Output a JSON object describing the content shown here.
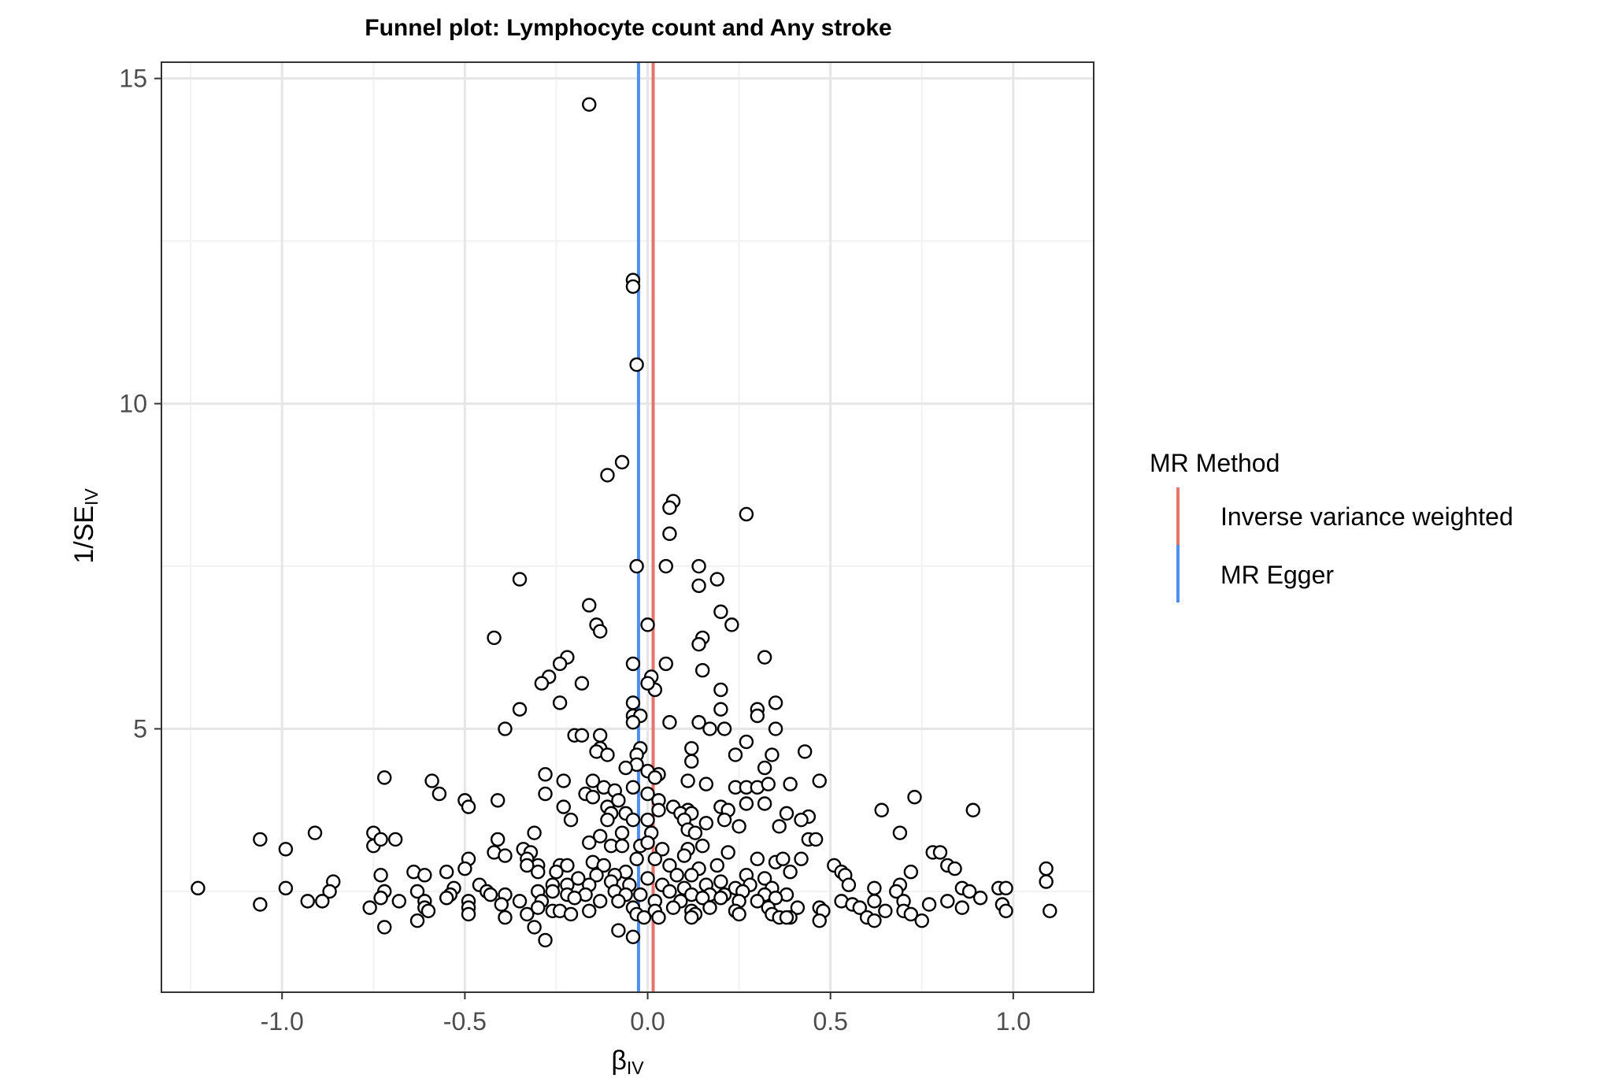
{
  "chart_data": {
    "type": "scatter",
    "title": "Funnel plot: Lymphocyte count and Any stroke",
    "xlabel": {
      "main": "β",
      "sub": "IV"
    },
    "ylabel": {
      "main": "1/SE",
      "sub": "IV"
    },
    "xlim": [
      -1.33,
      1.22
    ],
    "ylim": [
      0.95,
      15.25
    ],
    "xticks": [
      -1.0,
      -0.5,
      0.0,
      0.5,
      1.0
    ],
    "xtick_labels": [
      "-1.0",
      "-0.5",
      "0.0",
      "0.5",
      "1.0"
    ],
    "yticks": [
      5,
      10,
      15
    ],
    "ytick_labels": [
      "5",
      "10",
      "15"
    ],
    "grid": true,
    "legend": {
      "title": "MR Method",
      "position": "right",
      "entries": [
        {
          "label": "Inverse variance weighted",
          "color": "#e8736b"
        },
        {
          "label": "MR Egger",
          "color": "#4e8ff0"
        }
      ]
    },
    "vlines": [
      {
        "method": "Inverse variance weighted",
        "x": 0.015,
        "color": "#e8736b"
      },
      {
        "method": "MR Egger",
        "x": -0.025,
        "color": "#4e8ff0"
      }
    ],
    "points": [
      [
        -0.16,
        14.6
      ],
      [
        -0.04,
        11.9
      ],
      [
        -0.04,
        11.8
      ],
      [
        -0.03,
        10.6
      ],
      [
        -0.07,
        9.1
      ],
      [
        -0.11,
        8.9
      ],
      [
        0.07,
        8.5
      ],
      [
        0.06,
        8.4
      ],
      [
        0.27,
        8.3
      ],
      [
        0.06,
        8.0
      ],
      [
        -0.35,
        7.3
      ],
      [
        -0.03,
        7.5
      ],
      [
        0.05,
        7.5
      ],
      [
        0.14,
        7.5
      ],
      [
        0.19,
        7.3
      ],
      [
        0.14,
        7.2
      ],
      [
        -0.16,
        6.9
      ],
      [
        0.2,
        6.8
      ],
      [
        -0.14,
        6.6
      ],
      [
        -0.13,
        6.5
      ],
      [
        0.0,
        6.6
      ],
      [
        0.23,
        6.6
      ],
      [
        -0.42,
        6.4
      ],
      [
        0.15,
        6.4
      ],
      [
        0.14,
        6.3
      ],
      [
        -0.22,
        6.1
      ],
      [
        -0.24,
        6.0
      ],
      [
        0.32,
        6.1
      ],
      [
        -0.04,
        6.0
      ],
      [
        0.05,
        6.0
      ],
      [
        -0.27,
        5.8
      ],
      [
        0.01,
        5.8
      ],
      [
        0.15,
        5.9
      ],
      [
        -0.29,
        5.7
      ],
      [
        -0.18,
        5.7
      ],
      [
        0.02,
        5.6
      ],
      [
        0.0,
        5.7
      ],
      [
        0.2,
        5.6
      ],
      [
        -0.24,
        5.4
      ],
      [
        -0.35,
        5.3
      ],
      [
        -0.04,
        5.4
      ],
      [
        0.3,
        5.3
      ],
      [
        0.35,
        5.4
      ],
      [
        -0.04,
        5.2
      ],
      [
        -0.02,
        5.2
      ],
      [
        0.2,
        5.3
      ],
      [
        0.3,
        5.2
      ],
      [
        0.06,
        5.1
      ],
      [
        0.14,
        5.1
      ],
      [
        -0.04,
        5.1
      ],
      [
        0.17,
        5.0
      ],
      [
        0.21,
        5.0
      ],
      [
        0.35,
        5.0
      ],
      [
        -0.39,
        5.0
      ],
      [
        -0.2,
        4.9
      ],
      [
        -0.18,
        4.9
      ],
      [
        -0.13,
        4.9
      ],
      [
        0.27,
        4.8
      ],
      [
        -0.13,
        4.7
      ],
      [
        0.12,
        4.7
      ],
      [
        -0.14,
        4.65
      ],
      [
        -0.11,
        4.6
      ],
      [
        -0.02,
        4.7
      ],
      [
        0.34,
        4.6
      ],
      [
        0.43,
        4.65
      ],
      [
        -0.03,
        4.6
      ],
      [
        0.24,
        4.6
      ],
      [
        0.12,
        4.5
      ],
      [
        0.32,
        4.4
      ],
      [
        -0.03,
        4.45
      ],
      [
        0.0,
        4.35
      ],
      [
        -0.28,
        4.3
      ],
      [
        -0.06,
        4.4
      ],
      [
        -0.23,
        4.2
      ],
      [
        0.03,
        4.3
      ],
      [
        -0.15,
        4.2
      ],
      [
        0.02,
        4.25
      ],
      [
        -0.12,
        4.1
      ],
      [
        -0.09,
        4.05
      ],
      [
        -0.72,
        4.25
      ],
      [
        -0.59,
        4.2
      ],
      [
        -0.28,
        4.0
      ],
      [
        -0.17,
        4.0
      ],
      [
        -0.04,
        4.1
      ],
      [
        0.0,
        4.0
      ],
      [
        0.11,
        4.2
      ],
      [
        0.16,
        4.15
      ],
      [
        0.24,
        4.1
      ],
      [
        0.27,
        4.1
      ],
      [
        0.3,
        4.1
      ],
      [
        0.33,
        4.15
      ],
      [
        0.39,
        4.15
      ],
      [
        0.47,
        4.2
      ],
      [
        -0.57,
        4.0
      ],
      [
        -0.5,
        3.9
      ],
      [
        -0.49,
        3.8
      ],
      [
        -0.41,
        3.9
      ],
      [
        -0.23,
        3.8
      ],
      [
        -0.15,
        3.95
      ],
      [
        -0.11,
        3.8
      ],
      [
        -0.08,
        3.9
      ],
      [
        0.03,
        3.9
      ],
      [
        0.07,
        3.8
      ],
      [
        0.11,
        3.75
      ],
      [
        0.2,
        3.8
      ],
      [
        0.22,
        3.75
      ],
      [
        0.27,
        3.85
      ],
      [
        0.32,
        3.85
      ],
      [
        -0.1,
        3.7
      ],
      [
        -0.06,
        3.7
      ],
      [
        0.03,
        3.75
      ],
      [
        0.09,
        3.7
      ],
      [
        0.12,
        3.7
      ],
      [
        0.38,
        3.7
      ],
      [
        0.44,
        3.65
      ],
      [
        0.64,
        3.75
      ],
      [
        0.73,
        3.95
      ],
      [
        0.89,
        3.75
      ],
      [
        -0.21,
        3.6
      ],
      [
        -0.11,
        3.6
      ],
      [
        -0.04,
        3.6
      ],
      [
        0.0,
        3.6
      ],
      [
        0.1,
        3.6
      ],
      [
        0.16,
        3.55
      ],
      [
        0.21,
        3.6
      ],
      [
        0.25,
        3.5
      ],
      [
        0.36,
        3.5
      ],
      [
        0.42,
        3.6
      ],
      [
        -0.75,
        3.4
      ],
      [
        -0.91,
        3.4
      ],
      [
        -0.31,
        3.4
      ],
      [
        -0.13,
        3.35
      ],
      [
        -0.07,
        3.4
      ],
      [
        0.01,
        3.4
      ],
      [
        0.11,
        3.45
      ],
      [
        0.13,
        3.4
      ],
      [
        -1.06,
        3.3
      ],
      [
        -0.75,
        3.2
      ],
      [
        -0.73,
        3.3
      ],
      [
        -0.69,
        3.3
      ],
      [
        -0.41,
        3.3
      ],
      [
        -0.99,
        3.15
      ],
      [
        -0.42,
        3.1
      ],
      [
        -0.34,
        3.15
      ],
      [
        -0.32,
        3.1
      ],
      [
        -0.39,
        3.05
      ],
      [
        -0.33,
        3.0
      ],
      [
        -0.16,
        3.25
      ],
      [
        -0.1,
        3.2
      ],
      [
        -0.07,
        3.2
      ],
      [
        -0.02,
        3.2
      ],
      [
        0.0,
        3.25
      ],
      [
        0.04,
        3.15
      ],
      [
        0.11,
        3.15
      ],
      [
        0.15,
        3.2
      ],
      [
        0.22,
        3.1
      ],
      [
        0.44,
        3.3
      ],
      [
        0.46,
        3.3
      ],
      [
        0.69,
        3.4
      ],
      [
        -0.49,
        3.0
      ],
      [
        -0.3,
        2.9
      ],
      [
        -0.24,
        2.9
      ],
      [
        -0.22,
        2.9
      ],
      [
        -0.15,
        2.95
      ],
      [
        -0.12,
        2.9
      ],
      [
        -0.06,
        2.8
      ],
      [
        -0.03,
        3.0
      ],
      [
        0.02,
        3.0
      ],
      [
        0.06,
        2.9
      ],
      [
        0.1,
        3.05
      ],
      [
        0.14,
        2.85
      ],
      [
        0.19,
        2.9
      ],
      [
        0.3,
        3.0
      ],
      [
        0.35,
        2.95
      ],
      [
        0.37,
        3.0
      ],
      [
        0.42,
        3.0
      ],
      [
        0.51,
        2.9
      ],
      [
        0.53,
        2.8
      ],
      [
        0.78,
        3.1
      ],
      [
        0.8,
        3.1
      ],
      [
        -0.73,
        2.75
      ],
      [
        -0.64,
        2.8
      ],
      [
        -0.61,
        2.75
      ],
      [
        -0.55,
        2.8
      ],
      [
        -0.5,
        2.85
      ],
      [
        -0.33,
        2.9
      ],
      [
        -0.3,
        2.8
      ],
      [
        -0.25,
        2.8
      ],
      [
        -0.19,
        2.7
      ],
      [
        -0.14,
        2.75
      ],
      [
        -0.09,
        2.75
      ],
      [
        0.0,
        2.7
      ],
      [
        0.08,
        2.75
      ],
      [
        0.12,
        2.75
      ],
      [
        0.2,
        2.65
      ],
      [
        0.27,
        2.75
      ],
      [
        0.32,
        2.7
      ],
      [
        0.39,
        2.8
      ],
      [
        0.54,
        2.75
      ],
      [
        0.72,
        2.8
      ],
      [
        0.82,
        2.9
      ],
      [
        0.84,
        2.85
      ],
      [
        1.09,
        2.85
      ],
      [
        -0.86,
        2.65
      ],
      [
        -0.53,
        2.55
      ],
      [
        -0.46,
        2.6
      ],
      [
        -0.26,
        2.6
      ],
      [
        -0.22,
        2.6
      ],
      [
        -0.16,
        2.6
      ],
      [
        -0.1,
        2.65
      ],
      [
        -0.05,
        2.6
      ],
      [
        0.04,
        2.6
      ],
      [
        0.1,
        2.55
      ],
      [
        0.16,
        2.6
      ],
      [
        0.24,
        2.55
      ],
      [
        0.28,
        2.6
      ],
      [
        0.34,
        2.55
      ],
      [
        0.55,
        2.6
      ],
      [
        0.69,
        2.6
      ],
      [
        0.86,
        2.55
      ],
      [
        -1.23,
        2.55
      ],
      [
        -0.99,
        2.55
      ],
      [
        -0.87,
        2.5
      ],
      [
        -0.72,
        2.5
      ],
      [
        -0.63,
        2.5
      ],
      [
        -0.54,
        2.45
      ],
      [
        -0.44,
        2.5
      ],
      [
        -0.39,
        2.45
      ],
      [
        -0.3,
        2.5
      ],
      [
        -0.26,
        2.5
      ],
      [
        -0.22,
        2.45
      ],
      [
        -0.17,
        2.45
      ],
      [
        -0.09,
        2.5
      ],
      [
        -0.06,
        2.45
      ],
      [
        -0.02,
        2.45
      ],
      [
        0.06,
        2.5
      ],
      [
        0.12,
        2.45
      ],
      [
        0.17,
        2.45
      ],
      [
        0.21,
        2.45
      ],
      [
        0.26,
        2.5
      ],
      [
        0.32,
        2.45
      ],
      [
        0.38,
        2.45
      ],
      [
        0.62,
        2.55
      ],
      [
        0.68,
        2.5
      ],
      [
        0.88,
        2.5
      ],
      [
        0.96,
        2.55
      ],
      [
        0.98,
        2.55
      ],
      [
        1.09,
        2.65
      ],
      [
        -0.93,
        2.35
      ],
      [
        -0.89,
        2.35
      ],
      [
        -0.73,
        2.4
      ],
      [
        -0.68,
        2.35
      ],
      [
        -0.61,
        2.35
      ],
      [
        -0.55,
        2.4
      ],
      [
        -0.49,
        2.35
      ],
      [
        -0.43,
        2.45
      ],
      [
        -0.35,
        2.35
      ],
      [
        -0.29,
        2.35
      ],
      [
        -0.2,
        2.4
      ],
      [
        -0.13,
        2.35
      ],
      [
        -0.08,
        2.35
      ],
      [
        0.02,
        2.35
      ],
      [
        0.09,
        2.35
      ],
      [
        0.15,
        2.4
      ],
      [
        0.2,
        2.4
      ],
      [
        0.25,
        2.35
      ],
      [
        0.3,
        2.35
      ],
      [
        0.35,
        2.4
      ],
      [
        0.53,
        2.35
      ],
      [
        0.56,
        2.3
      ],
      [
        0.62,
        2.35
      ],
      [
        0.7,
        2.35
      ],
      [
        0.77,
        2.3
      ],
      [
        0.82,
        2.35
      ],
      [
        0.91,
        2.4
      ],
      [
        0.97,
        2.3
      ],
      [
        -1.06,
        2.3
      ],
      [
        -0.76,
        2.25
      ],
      [
        -0.61,
        2.25
      ],
      [
        -0.49,
        2.25
      ],
      [
        -0.4,
        2.3
      ],
      [
        -0.3,
        2.25
      ],
      [
        -0.26,
        2.2
      ],
      [
        -0.24,
        2.2
      ],
      [
        -0.16,
        2.2
      ],
      [
        -0.04,
        2.25
      ],
      [
        0.02,
        2.2
      ],
      [
        0.07,
        2.25
      ],
      [
        0.12,
        2.2
      ],
      [
        0.17,
        2.25
      ],
      [
        0.24,
        2.2
      ],
      [
        0.33,
        2.25
      ],
      [
        0.41,
        2.25
      ],
      [
        0.47,
        2.25
      ],
      [
        0.58,
        2.25
      ],
      [
        0.65,
        2.2
      ],
      [
        0.7,
        2.2
      ],
      [
        0.86,
        2.25
      ],
      [
        0.98,
        2.2
      ],
      [
        1.1,
        2.2
      ],
      [
        -0.6,
        2.2
      ],
      [
        -0.49,
        2.15
      ],
      [
        -0.33,
        2.15
      ],
      [
        -0.21,
        2.15
      ],
      [
        -0.03,
        2.15
      ],
      [
        0.03,
        2.1
      ],
      [
        0.13,
        2.15
      ],
      [
        0.25,
        2.15
      ],
      [
        0.34,
        2.15
      ],
      [
        0.36,
        2.1
      ],
      [
        0.39,
        2.1
      ],
      [
        0.48,
        2.2
      ],
      [
        0.6,
        2.1
      ],
      [
        0.62,
        2.05
      ],
      [
        0.72,
        2.15
      ],
      [
        0.75,
        2.05
      ],
      [
        -0.63,
        2.05
      ],
      [
        -0.39,
        2.1
      ],
      [
        -0.01,
        2.1
      ],
      [
        0.12,
        2.1
      ],
      [
        0.38,
        2.1
      ],
      [
        0.47,
        2.05
      ],
      [
        -0.72,
        1.95
      ],
      [
        -0.31,
        1.95
      ],
      [
        -0.08,
        1.9
      ],
      [
        -0.04,
        1.8
      ],
      [
        -0.28,
        1.75
      ]
    ]
  }
}
